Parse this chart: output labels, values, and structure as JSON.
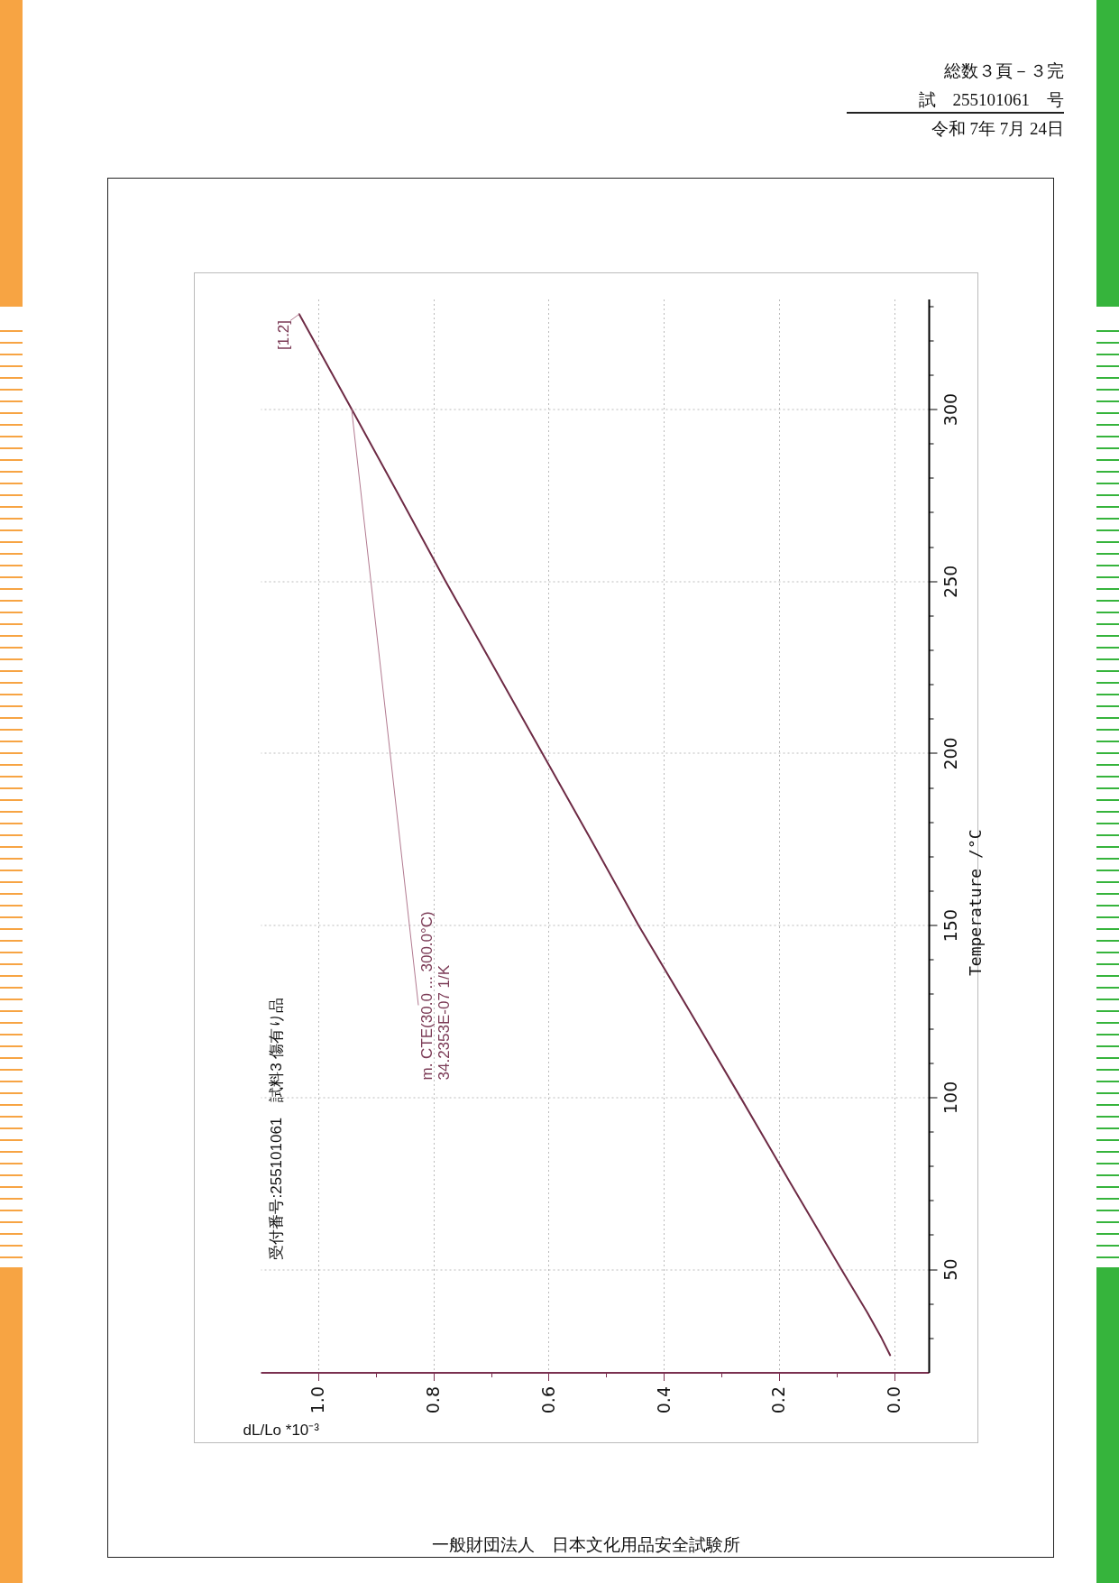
{
  "chart_data": {
    "type": "line",
    "title": "受付番号:255101061　試料3 傷有り品",
    "xlabel": "dL/Lo *10⁻³",
    "ylabel": "Temperature /°C",
    "x": [
      0.007,
      0.022,
      0.047,
      0.092,
      0.18,
      0.267,
      0.355,
      0.444,
      0.527,
      0.611,
      0.695,
      0.779,
      0.86,
      0.942,
      1.033
    ],
    "series": [
      {
        "color": "#6e2b45",
        "values": [
          25,
          30,
          37.5,
          50,
          75,
          100,
          125,
          150,
          175,
          200,
          225,
          250,
          275,
          300,
          327.6
        ]
      }
    ],
    "xlim": [
      1.1,
      -0.06
    ],
    "xticks": [
      {
        "value": 0,
        "label": "0.0"
      },
      {
        "value": 0.1,
        "label": null
      },
      {
        "value": 0.2,
        "label": "0.2"
      },
      {
        "value": 0.3,
        "label": null
      },
      {
        "value": 0.4,
        "label": "0.4"
      },
      {
        "value": 0.5,
        "label": null
      },
      {
        "value": 0.6,
        "label": "0.6"
      },
      {
        "value": 0.7,
        "label": null
      },
      {
        "value": 0.8,
        "label": "0.8"
      },
      {
        "value": 0.9,
        "label": null
      },
      {
        "value": 1,
        "label": "1.0"
      }
    ],
    "ylim": [
      20,
      332
    ],
    "yticks": [
      {
        "value": 30,
        "label": null
      },
      {
        "value": 40,
        "label": null
      },
      50,
      {
        "value": 60,
        "label": null
      },
      {
        "value": 70,
        "label": null
      },
      {
        "value": 80,
        "label": null
      },
      {
        "value": 90,
        "label": null
      },
      100,
      {
        "value": 110,
        "label": null
      },
      {
        "value": 120,
        "label": null
      },
      {
        "value": 130,
        "label": null
      },
      {
        "value": 140,
        "label": null
      },
      150,
      {
        "value": 160,
        "label": null
      },
      {
        "value": 170,
        "label": null
      },
      {
        "value": 180,
        "label": null
      },
      {
        "value": 190,
        "label": null
      },
      200,
      {
        "value": 210,
        "label": null
      },
      {
        "value": 220,
        "label": null
      },
      {
        "value": 230,
        "label": null
      },
      {
        "value": 240,
        "label": null
      },
      250,
      {
        "value": 260,
        "label": null
      },
      {
        "value": 270,
        "label": null
      },
      {
        "value": 280,
        "label": null
      },
      {
        "value": 290,
        "label": null
      },
      300,
      {
        "value": 310,
        "label": null
      },
      {
        "value": 320,
        "label": null
      },
      {
        "value": 330,
        "label": null
      }
    ],
    "grid": true,
    "annotations": [
      "総数３頁－３完",
      "試　255101061　号",
      "令和 7年 7月 24日",
      "一般財団法人　日本文化用品安全試験所",
      {
        "text": "m. CTE(30.0 ... 300.0°C)\n34.2353E-07 1/K",
        "x": 0.942,
        "y": 300
      },
      {
        "text": "[1.2]",
        "x": 1.033,
        "y": 327.6
      }
    ]
  }
}
